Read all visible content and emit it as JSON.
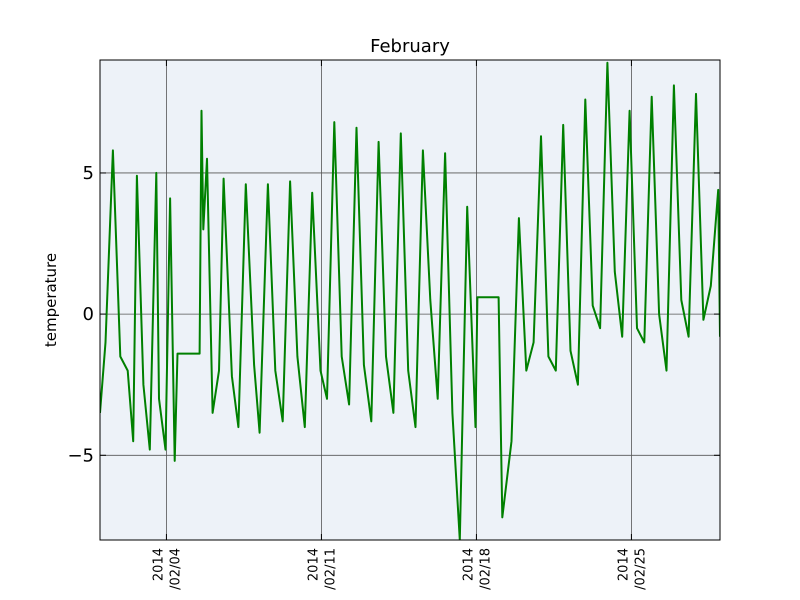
{
  "chart_data": {
    "type": "line",
    "title": "February",
    "xlabel": "",
    "ylabel": "temperature",
    "xlim": [
      "2014-02-01",
      "2014-03-01"
    ],
    "ylim": [
      -8,
      9
    ],
    "yticks": [
      5,
      0,
      -5
    ],
    "ytick_labels": [
      "5",
      "0",
      "−5"
    ],
    "xticks": [
      {
        "date": "2014-02-04",
        "line1": "2014",
        "line2": "/02/04"
      },
      {
        "date": "2014-02-11",
        "line1": "2014",
        "line2": "/02/11"
      },
      {
        "date": "2014-02-18",
        "line1": "2014",
        "line2": "/02/18"
      },
      {
        "date": "2014-02-25",
        "line1": "2014",
        "line2": "/02/25"
      }
    ],
    "grid": true,
    "plot_background": "#edf2f8",
    "series": [
      {
        "color": "#008000",
        "x": [
          "2014-02-01",
          "2014-02-01T06:00",
          "2014-02-01T14:00",
          "2014-02-01T22:00",
          "2014-02-02T06:00",
          "2014-02-02T12:00",
          "2014-02-02T16:00",
          "2014-02-02T23:00",
          "2014-02-03T06:00",
          "2014-02-03T13:00",
          "2014-02-03T16:00",
          "2014-02-03T23:00",
          "2014-02-04T04:00",
          "2014-02-04T09:00",
          "2014-02-04T12:00",
          "2014-02-05T00:00",
          "2014-02-05T12:00",
          "2014-02-05T14:00",
          "2014-02-05T16:00",
          "2014-02-05T20:00",
          "2014-02-06T02:00",
          "2014-02-06T09:00",
          "2014-02-06T14:00",
          "2014-02-06T23:00",
          "2014-02-07T06:00",
          "2014-02-07T14:00",
          "2014-02-07T23:00",
          "2014-02-08T05:00",
          "2014-02-08T14:00",
          "2014-02-08T22:00",
          "2014-02-09T06:00",
          "2014-02-09T14:00",
          "2014-02-09T22:00",
          "2014-02-10T06:00",
          "2014-02-10T14:00",
          "2014-02-10T23:00",
          "2014-02-11T06:00",
          "2014-02-11T14:00",
          "2014-02-11T22:00",
          "2014-02-12T06:00",
          "2014-02-12T14:00",
          "2014-02-12T22:00",
          "2014-02-13T06:00",
          "2014-02-13T14:00",
          "2014-02-13T22:00",
          "2014-02-14T06:00",
          "2014-02-14T14:00",
          "2014-02-14T22:00",
          "2014-02-15T06:00",
          "2014-02-15T14:00",
          "2014-02-15T22:00",
          "2014-02-16T06:00",
          "2014-02-16T14:00",
          "2014-02-16T22:00",
          "2014-02-17T06:00",
          "2014-02-17T14:00",
          "2014-02-17T23:00",
          "2014-02-18T01:00",
          "2014-02-18T12:00",
          "2014-02-19T00:00",
          "2014-02-19T04:00",
          "2014-02-19T14:00",
          "2014-02-19T22:00",
          "2014-02-20T06:00",
          "2014-02-20T14:00",
          "2014-02-20T22:00",
          "2014-02-21T06:00",
          "2014-02-21T14:00",
          "2014-02-21T22:00",
          "2014-02-22T06:00",
          "2014-02-22T14:00",
          "2014-02-22T22:00",
          "2014-02-23T06:00",
          "2014-02-23T14:00",
          "2014-02-23T22:00",
          "2014-02-24T06:00",
          "2014-02-24T14:00",
          "2014-02-24T22:00",
          "2014-02-25T06:00",
          "2014-02-25T14:00",
          "2014-02-25T22:00",
          "2014-02-26T06:00",
          "2014-02-26T14:00",
          "2014-02-26T22:00",
          "2014-02-27T06:00",
          "2014-02-27T14:00",
          "2014-02-27T22:00",
          "2014-02-28T06:00",
          "2014-02-28T14:00",
          "2014-02-28T22:00",
          "2014-03-01"
        ],
        "y": [
          -3.5,
          -1.0,
          5.8,
          -1.5,
          -2.0,
          -4.5,
          4.9,
          -2.5,
          -4.8,
          5.0,
          -3.0,
          -4.8,
          4.1,
          -5.2,
          -1.4,
          -1.4,
          -1.4,
          7.2,
          3.0,
          5.5,
          -3.5,
          -2.0,
          4.8,
          -2.2,
          -4.0,
          4.6,
          -1.8,
          -4.2,
          4.6,
          -2.0,
          -3.8,
          4.7,
          -1.5,
          -4.0,
          4.3,
          -2.0,
          -3.0,
          6.8,
          -1.5,
          -3.2,
          6.6,
          -1.8,
          -3.8,
          6.1,
          -1.5,
          -3.5,
          6.4,
          -2.0,
          -4.0,
          5.8,
          0.5,
          -3.0,
          5.7,
          -3.5,
          -8.0,
          3.8,
          -4.0,
          0.6,
          0.6,
          0.6,
          -7.2,
          -4.5,
          3.4,
          -2.0,
          -1.0,
          6.3,
          -1.5,
          -2.0,
          6.7,
          -1.3,
          -2.5,
          7.6,
          0.3,
          -0.5,
          8.9,
          1.5,
          -0.8,
          7.2,
          -0.5,
          -1.0,
          7.7,
          0.0,
          -2.0,
          8.1,
          0.5,
          -0.8,
          7.8,
          -0.2,
          1.0,
          4.4,
          -0.8
        ]
      }
    ]
  }
}
